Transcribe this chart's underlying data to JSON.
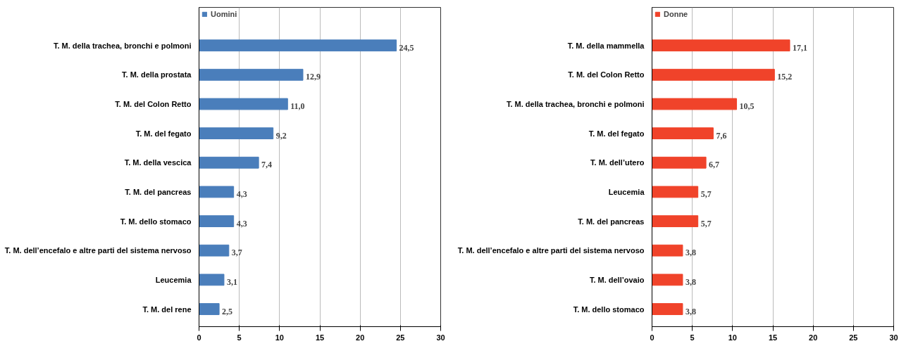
{
  "chart_data": [
    {
      "type": "bar",
      "orientation": "horizontal",
      "categories": [
        "T. M. della trachea, bronchi e polmoni",
        "T. M. della prostata",
        "T. M. del Colon Retto",
        "T. M. del fegato",
        "T. M. della vescica",
        "T. M. del pancreas",
        "T. M. dello stomaco",
        "T. M. dell’encefalo e altre parti del sistema nervoso",
        "Leucemia",
        "T. M. del rene"
      ],
      "series": [
        {
          "name": "Uomini",
          "color": "#4a7ebb",
          "values": [
            24.5,
            12.9,
            11.0,
            9.2,
            7.4,
            4.3,
            4.3,
            3.7,
            3.1,
            2.5
          ],
          "value_labels": [
            "24,5",
            "12,9",
            "11,0",
            "9,2",
            "7,4",
            "4,3",
            "4,3",
            "3,7",
            "3,1",
            "2,5"
          ]
        }
      ],
      "xlim": [
        0,
        30
      ],
      "xticks": [
        0,
        5,
        10,
        15,
        20,
        25,
        30
      ],
      "grid": "x",
      "legend": "top"
    },
    {
      "type": "bar",
      "orientation": "horizontal",
      "categories": [
        "T. M. della mammella",
        "T. M. del Colon Retto",
        "T. M. della trachea, bronchi e polmoni",
        "T. M. del fegato",
        "T. M. dell’utero",
        "Leucemia",
        "T. M. del pancreas",
        "T. M. dell’encefalo e altre parti del sistema nervoso",
        "T. M. dell’ovaio",
        "T. M. dello stomaco"
      ],
      "series": [
        {
          "name": "Donne",
          "color": "#f0432a",
          "values": [
            17.1,
            15.2,
            10.5,
            7.6,
            6.7,
            5.7,
            5.7,
            3.8,
            3.8,
            3.8
          ],
          "value_labels": [
            "17,1",
            "15,2",
            "10,5",
            "7,6",
            "6,7",
            "5,7",
            "5,7",
            "3,8",
            "3,8",
            "3,8"
          ]
        }
      ],
      "xlim": [
        0,
        30
      ],
      "xticks": [
        0,
        5,
        10,
        15,
        20,
        25,
        30
      ],
      "grid": "x",
      "legend": "top"
    }
  ]
}
